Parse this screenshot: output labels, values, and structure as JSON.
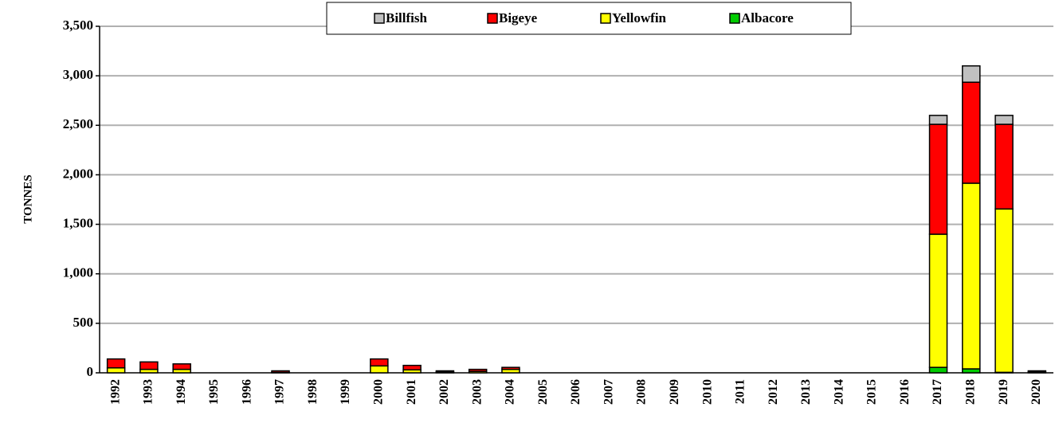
{
  "chart_data": {
    "type": "stacked_bar",
    "y_label": "TONNES",
    "categories": [
      "1992",
      "1993",
      "1994",
      "1995",
      "1996",
      "1997",
      "1998",
      "1999",
      "2000",
      "2001",
      "2002",
      "2003",
      "2004",
      "2005",
      "2006",
      "2007",
      "2008",
      "2009",
      "2010",
      "2011",
      "2012",
      "2013",
      "2014",
      "2015",
      "2016",
      "2017",
      "2018",
      "2019",
      "2020"
    ],
    "series": [
      {
        "name": "Albacore",
        "color": "#00cc00",
        "values": [
          0,
          0,
          0,
          0,
          0,
          0,
          0,
          0,
          0,
          0,
          0,
          0,
          0,
          0,
          0,
          0,
          0,
          0,
          0,
          0,
          0,
          0,
          0,
          0,
          0,
          55,
          40,
          5,
          0
        ]
      },
      {
        "name": "Yellowfin",
        "color": "#ffff00",
        "values": [
          50,
          35,
          35,
          0,
          0,
          5,
          0,
          0,
          70,
          30,
          10,
          15,
          35,
          0,
          0,
          0,
          0,
          0,
          0,
          0,
          0,
          0,
          0,
          0,
          0,
          1345,
          1875,
          1650,
          10
        ]
      },
      {
        "name": "Bigeye",
        "color": "#ff0000",
        "values": [
          90,
          75,
          55,
          0,
          0,
          15,
          0,
          0,
          70,
          45,
          10,
          20,
          20,
          0,
          0,
          0,
          0,
          0,
          0,
          0,
          0,
          0,
          0,
          0,
          0,
          1110,
          1020,
          855,
          10
        ]
      },
      {
        "name": "Billfish",
        "color": "#c0c0c0",
        "values": [
          0,
          0,
          0,
          0,
          0,
          0,
          0,
          0,
          0,
          0,
          0,
          0,
          0,
          0,
          0,
          0,
          0,
          0,
          0,
          0,
          0,
          0,
          0,
          0,
          0,
          90,
          165,
          90,
          0
        ]
      }
    ],
    "ylim": [
      0,
      3500
    ],
    "yticks": [
      0,
      500,
      {
        "value": 1000,
        "label": "1,000"
      },
      {
        "value": 1500,
        "label": "1,500"
      },
      {
        "value": 2000,
        "label": "2,000"
      },
      {
        "value": 2500,
        "label": "2,500"
      },
      {
        "value": 3000,
        "label": "3,000"
      },
      {
        "value": 3500,
        "label": "3,500"
      }
    ],
    "grid": true,
    "legend": "top"
  }
}
